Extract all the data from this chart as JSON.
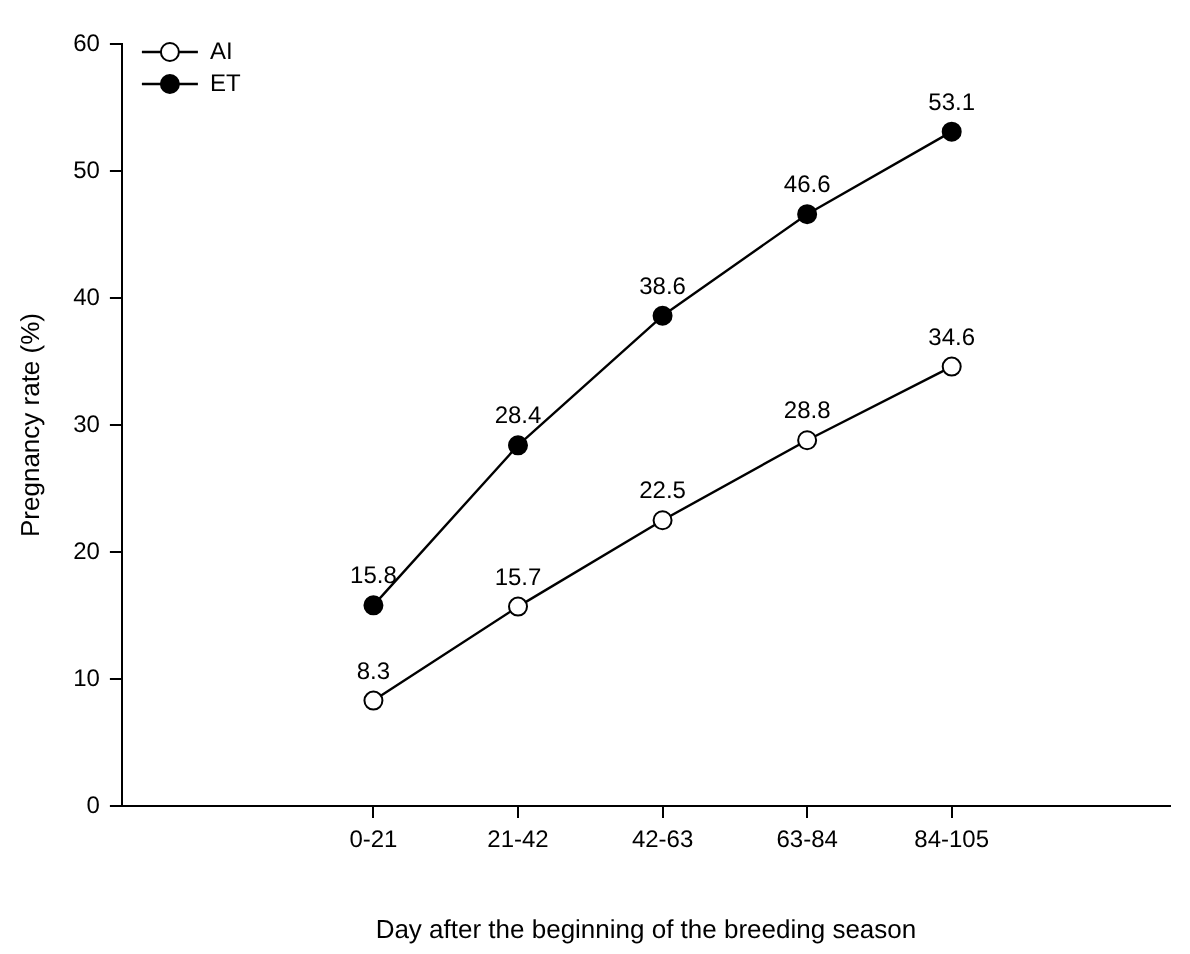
{
  "chart_data": {
    "type": "line",
    "xlabel": "Day after the beginning of the breeding season",
    "ylabel": "Pregnancy rate (%)",
    "categories": [
      "0-21",
      "21-42",
      "42-63",
      "63-84",
      "84-105"
    ],
    "series": [
      {
        "name": "AI",
        "color": "#000000",
        "values": [
          8.3,
          15.7,
          22.5,
          28.8,
          34.6
        ]
      },
      {
        "name": "ET",
        "color": "#000000",
        "values": [
          15.8,
          28.4,
          38.6,
          46.6,
          53.1
        ]
      }
    ],
    "ylim": [
      0,
      60
    ],
    "yticks": [
      0,
      10,
      20,
      30,
      40,
      50,
      60
    ],
    "grid": false,
    "legend": "top left",
    "marker": "circle",
    "line_style": "solid",
    "data_labels": true
  }
}
